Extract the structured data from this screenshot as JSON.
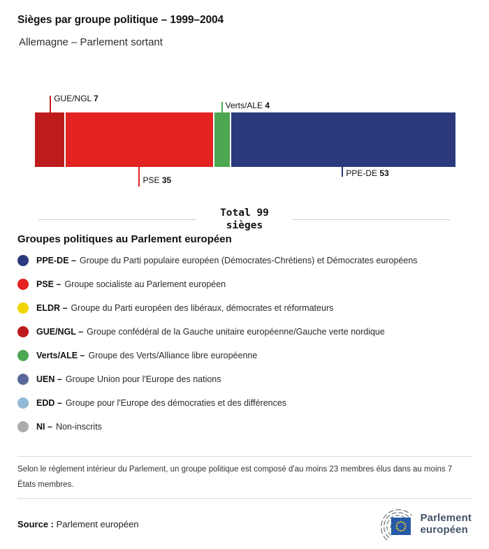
{
  "header": {
    "title": "Sièges par groupe politique – 1999–2004",
    "subtitle": "Allemagne – Parlement sortant"
  },
  "chart_data": {
    "type": "bar",
    "variant": "horizontal-stacked-seats",
    "title": "Sièges par groupe politique – 1999–2004",
    "subtitle": "Allemagne – Parlement sortant",
    "total_seats": 99,
    "total_label": "Total 99\nsièges",
    "segments": [
      {
        "name": "GUE/NGL",
        "seats": 7,
        "color": "#BE1C1C",
        "label_side": "top"
      },
      {
        "name": "PSE",
        "seats": 35,
        "color": "#E32221",
        "label_side": "bottom"
      },
      {
        "name": "Verts/ALE",
        "seats": 4,
        "color": "#4DA750",
        "label_side": "top"
      },
      {
        "name": "PPE-DE",
        "seats": 53,
        "color": "#2B3A7D",
        "label_side": "bottom"
      }
    ]
  },
  "legend": {
    "heading": "Groupes politiques au Parlement européen",
    "items": [
      {
        "abbr": "PPE-DE –",
        "desc": "Groupe du Parti populaire européen (Démocrates-Chrétiens) et Démocrates européens",
        "color": "#2B3A7D"
      },
      {
        "abbr": "PSE –",
        "desc": "Groupe socialiste au Parlement européen",
        "color": "#E32221"
      },
      {
        "abbr": "ELDR –",
        "desc": "Groupe du Parti européen des libéraux, démocrates et réformateurs",
        "color": "#F0D500"
      },
      {
        "abbr": "GUE/NGL –",
        "desc": "Groupe confédéral de la Gauche unitaire européenne/Gauche verte nordique",
        "color": "#BE1C1C"
      },
      {
        "abbr": "Verts/ALE –",
        "desc": "Groupe des Verts/Alliance libre européenne",
        "color": "#4DA750"
      },
      {
        "abbr": "UEN –",
        "desc": "Groupe Union pour l'Europe des nations",
        "color": "#5A6899"
      },
      {
        "abbr": "EDD –",
        "desc": "Groupe pour l'Europe des démocraties et des différences",
        "color": "#93BAD5"
      },
      {
        "abbr": "NI –",
        "desc": "Non-inscrits",
        "color": "#ACACAC"
      }
    ]
  },
  "footer": {
    "note": "Selon le règlement intérieur du Parlement, un groupe politique est composé d'au moins 23 membres élus dans au moins 7 États membres.",
    "source_label": "Source :",
    "source_value": "Parlement européen",
    "logo": {
      "line1": "Parlement",
      "line2": "européen",
      "flag_color": "#2859A8",
      "star_color": "#F7D117",
      "arc_color": "#878D92"
    }
  }
}
